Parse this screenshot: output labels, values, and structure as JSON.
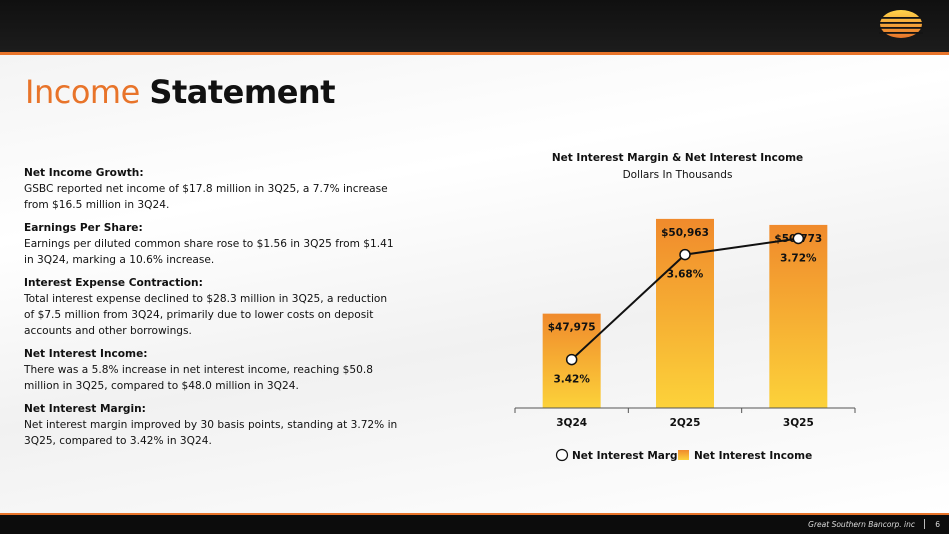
{
  "slide": {
    "title_accent": "Income",
    "title_main": "Statement",
    "footer_company": "Great Southern Bancorp. inc",
    "page_number": "6",
    "colors": {
      "accent": "#e8742a",
      "bar_top": "#f08a2c",
      "bar_bottom": "#fcd23a",
      "line": "#111111"
    }
  },
  "paragraphs": [
    {
      "heading": "Net Income Growth:",
      "body": "GSBC reported net income of $17.8 million in 3Q25, a 7.7% increase from $16.5 million in 3Q24."
    },
    {
      "heading": "Earnings Per Share:",
      "body": "Earnings per diluted common share rose to $1.56 in 3Q25 from $1.41 in 3Q24, marking a 10.6% increase."
    },
    {
      "heading": "Interest Expense Contraction:",
      "body": "Total interest expense declined to $28.3 million in 3Q25, a reduction of $7.5 million from 3Q24, primarily due to lower costs on deposit accounts and other borrowings."
    },
    {
      "heading": "Net Interest Income:",
      "body": "There was a 5.8% increase in net interest income, reaching $50.8 million in 3Q25, compared to $48.0 million in 3Q24."
    },
    {
      "heading": "Net Interest Margin:",
      "body": "Net interest margin improved by 30 basis points, standing at 3.72% in 3Q25, compared to 3.42% in 3Q24."
    }
  ],
  "chart_data": {
    "type": "bar",
    "title": "Net Interest Margin & Net Interest Income",
    "subtitle": "Dollars In Thousands",
    "categories": [
      "3Q24",
      "2Q25",
      "3Q25"
    ],
    "series": [
      {
        "name": "Net Interest Income",
        "type": "bar",
        "values": [
          47975,
          50963,
          50773
        ],
        "labels": [
          "$47,975",
          "$50,963",
          "$50,773"
        ],
        "axis": "left",
        "ylim": [
          45000,
          52000
        ]
      },
      {
        "name": "Net Interest Margin",
        "type": "line",
        "values": [
          3.42,
          3.68,
          3.72
        ],
        "labels": [
          "3.42%",
          "3.68%",
          "3.72%"
        ],
        "axis": "right",
        "ylim": [
          3.3,
          3.85
        ]
      }
    ],
    "legend": [
      "Net Interest Margin",
      "Net Interest Income"
    ],
    "legend_position": "bottom",
    "grid": false
  }
}
